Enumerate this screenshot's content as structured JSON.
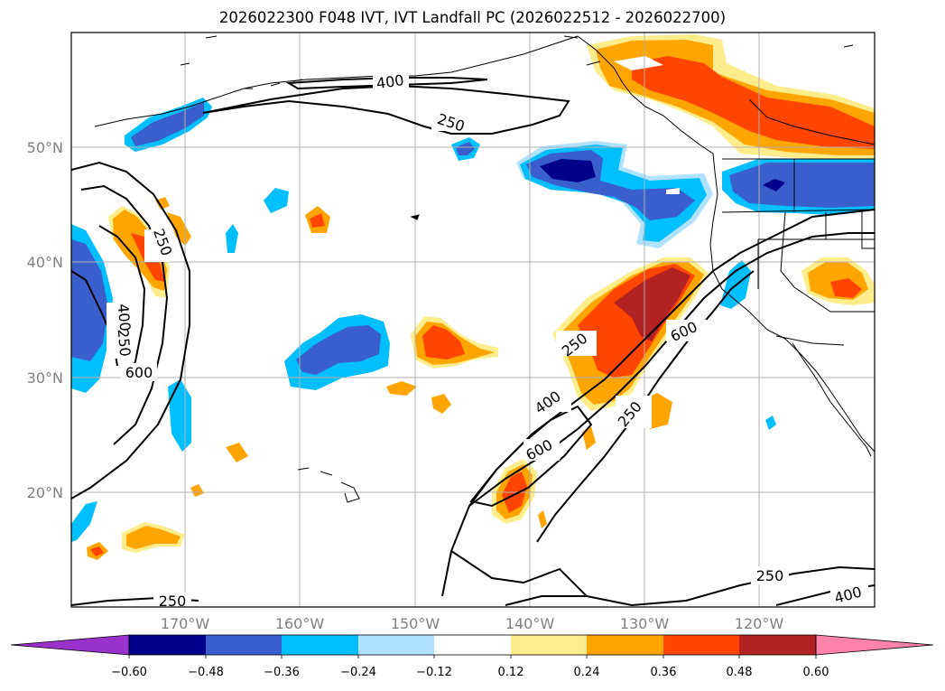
{
  "title": "2026022300 F048 IVT, IVT Landfall PC (2026022512 - 2026022700)",
  "lat_labels": [
    "50°N",
    "40°N",
    "30°N",
    "20°N"
  ],
  "lon_labels": [
    "170°W",
    "160°W",
    "150°W",
    "140°W",
    "130°W",
    "120°W"
  ],
  "contour_labels": [
    "400",
    "250",
    "250",
    "400",
    "250",
    "600",
    "250",
    "600",
    "400",
    "600",
    "250",
    "250",
    "400",
    "250"
  ],
  "colorbar": {
    "ticks": [
      "−0.60",
      "−0.48",
      "−0.36",
      "−0.24",
      "−0.12",
      "0.12",
      "0.24",
      "0.36",
      "0.48",
      "0.60"
    ],
    "colors": [
      "#9932cc",
      "#00008b",
      "#3a5fcd",
      "#00bfff",
      "#b0e2ff",
      "#ffffff",
      "#ffec8b",
      "#ffa500",
      "#ff4500",
      "#b22222",
      "#ff82ab"
    ]
  },
  "palette": {
    "deep_blue": "#00008b",
    "blue": "#3a5fcd",
    "sky": "#00bfff",
    "pale_blue": "#b0e2ff",
    "pale_yellow": "#ffec8b",
    "orange": "#ffa500",
    "red_orange": "#ff4500",
    "firebrick": "#b22222"
  }
}
